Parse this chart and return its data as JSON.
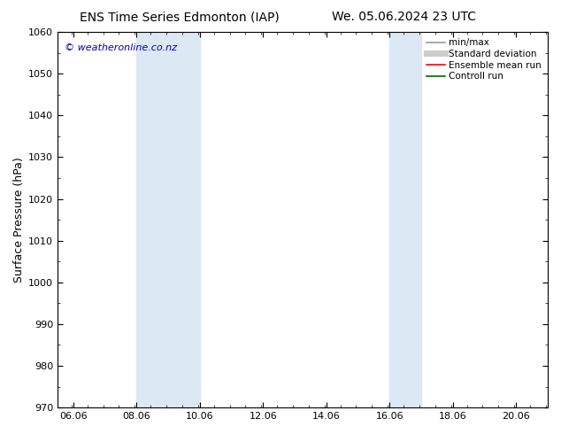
{
  "title_left": "ENS Time Series Edmonton (IAP)",
  "title_right": "We. 05.06.2024 23 UTC",
  "ylabel": "Surface Pressure (hPa)",
  "ylim": [
    970,
    1060
  ],
  "yticks": [
    970,
    980,
    990,
    1000,
    1010,
    1020,
    1030,
    1040,
    1050,
    1060
  ],
  "xlim_start": 5.56,
  "xlim_end": 21.06,
  "xticks": [
    6.06,
    8.06,
    10.06,
    12.06,
    14.06,
    16.06,
    18.06,
    20.06
  ],
  "xticklabels": [
    "06.06",
    "08.06",
    "10.06",
    "12.06",
    "14.06",
    "16.06",
    "18.06",
    "20.06"
  ],
  "shaded_regions": [
    {
      "x_start": 8.06,
      "x_end": 10.06
    },
    {
      "x_start": 16.06,
      "x_end": 17.06
    }
  ],
  "shade_color": "#dce9f5",
  "bg_color": "#ffffff",
  "watermark": "© weatheronline.co.nz",
  "watermark_color": "#0000bb",
  "legend_entries": [
    {
      "label": "min/max",
      "color": "#999999",
      "lw": 1.2
    },
    {
      "label": "Standard deviation",
      "color": "#cccccc",
      "lw": 5
    },
    {
      "label": "Ensemble mean run",
      "color": "#ff0000",
      "lw": 1.2
    },
    {
      "label": "Controll run",
      "color": "#006600",
      "lw": 1.2
    }
  ],
  "title_fontsize": 10,
  "ylabel_fontsize": 9,
  "tick_fontsize": 8,
  "watermark_fontsize": 8,
  "legend_fontsize": 7.5
}
